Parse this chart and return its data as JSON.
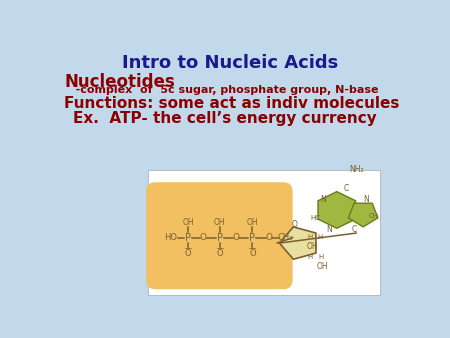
{
  "bg_color": "#c2d8eb",
  "title": "Intro to Nucleic Acids",
  "title_color": "#1a1a8c",
  "title_fontsize": 13,
  "line1": "Nucleotides",
  "line1_color": "#8b0000",
  "line1_fontsize": 12,
  "line2": "   -complex  of  5c sugar, phosphate group, N-base",
  "line2_color": "#8b0000",
  "line2_fontsize": 8,
  "line3": "Functions: some act as indiv molecules",
  "line3_color": "#8b0000",
  "line3_fontsize": 11,
  "line4": "Ex.  ATP- the cell’s energy currency",
  "line4_color": "#8b0000",
  "line4_fontsize": 11,
  "box_bg": "#ffffff",
  "phosphate_bg": "#f2c060",
  "sugar_bg": "#e8dfa0",
  "sugar_bottom_bg": "#b8a860",
  "base_color": "#a0b840",
  "chain_color": "#7a6030",
  "label_color": "#7a6030"
}
